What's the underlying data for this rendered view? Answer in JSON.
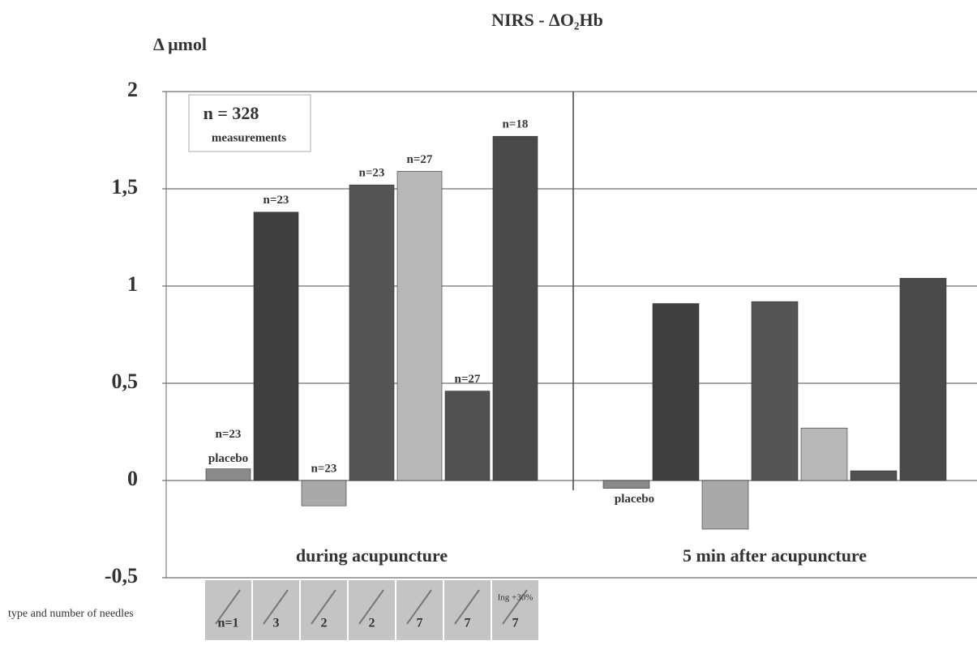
{
  "chart_data": {
    "type": "bar",
    "title": "NIRS - ΔO₂Hb",
    "y_label": "Δ μmol",
    "inset": [
      "n = 328",
      "measurements"
    ],
    "categories": [
      "during acupuncture",
      "5 min after acupuncture"
    ],
    "needle_title": "type and number of needles",
    "ylim": [
      -0.5,
      2
    ],
    "yticks": [
      {
        "value": -0.5,
        "label": "-0,5"
      },
      0,
      {
        "value": 0.5,
        "label": "0,5"
      },
      1,
      {
        "value": 1.5,
        "label": "1,5"
      },
      2
    ],
    "grid": true,
    "series": [
      {
        "name": "n=1",
        "color": "#8a8a8a",
        "values": [
          0.06,
          -0.04
        ],
        "n_labels": [
          "n=23",
          null
        ],
        "tags": [
          "placebo",
          "placebo"
        ]
      },
      {
        "name": "3",
        "color": "#3f3f3f",
        "values": [
          1.38,
          0.91
        ],
        "n_labels": [
          "n=23",
          null
        ]
      },
      {
        "name": "2",
        "color": "#a9a9a9",
        "values": [
          -0.13,
          -0.25
        ],
        "n_labels": [
          "n=23",
          null
        ]
      },
      {
        "name": "2",
        "color": "#555555",
        "values": [
          1.52,
          0.92
        ],
        "n_labels": [
          "n=23",
          null
        ]
      },
      {
        "name": "7",
        "color": "#b8b8b8",
        "values": [
          1.59,
          0.27
        ],
        "n_labels": [
          "n=27",
          null
        ]
      },
      {
        "name": "7",
        "color": "#505050",
        "values": [
          0.46,
          0.05
        ],
        "n_labels": [
          "n=27",
          null
        ]
      },
      {
        "name": "7",
        "color": "#4a4a4a",
        "values": [
          1.77,
          1.04
        ],
        "n_labels": [
          "n=18",
          null
        ],
        "needle_note": "Ing +30%"
      }
    ]
  }
}
